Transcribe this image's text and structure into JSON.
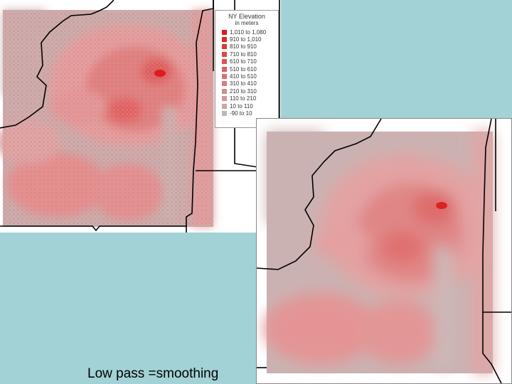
{
  "legend": {
    "title": "NY Elevation",
    "subtitle": "in meters",
    "classes": [
      {
        "label": "1,010 to 1,080",
        "color": "#e01818"
      },
      {
        "label": "910 to 1,010",
        "color": "#e22626"
      },
      {
        "label": "810 to 910",
        "color": "#e43434"
      },
      {
        "label": "710 to 810",
        "color": "#e24444"
      },
      {
        "label": "610 to 710",
        "color": "#df5252"
      },
      {
        "label": "510 to 610",
        "color": "#dc6060"
      },
      {
        "label": "410 to 510",
        "color": "#d87070"
      },
      {
        "label": "310 to 410",
        "color": "#d47e7e"
      },
      {
        "label": "210 to 310",
        "color": "#d08c8c"
      },
      {
        "label": "110 to 210",
        "color": "#cb9a9a"
      },
      {
        "label": "10 to 110",
        "color": "#c6a8a8"
      },
      {
        "label": "-90 to 10",
        "color": "#c0b6b6"
      }
    ]
  },
  "caption": "Low pass =smoothing",
  "colors": {
    "background": "#a2d2d6",
    "raster_base": "#e6a4a4",
    "raster_high": "#e03636",
    "raster_low": "#c8b0b0",
    "boundary": "#000000"
  }
}
